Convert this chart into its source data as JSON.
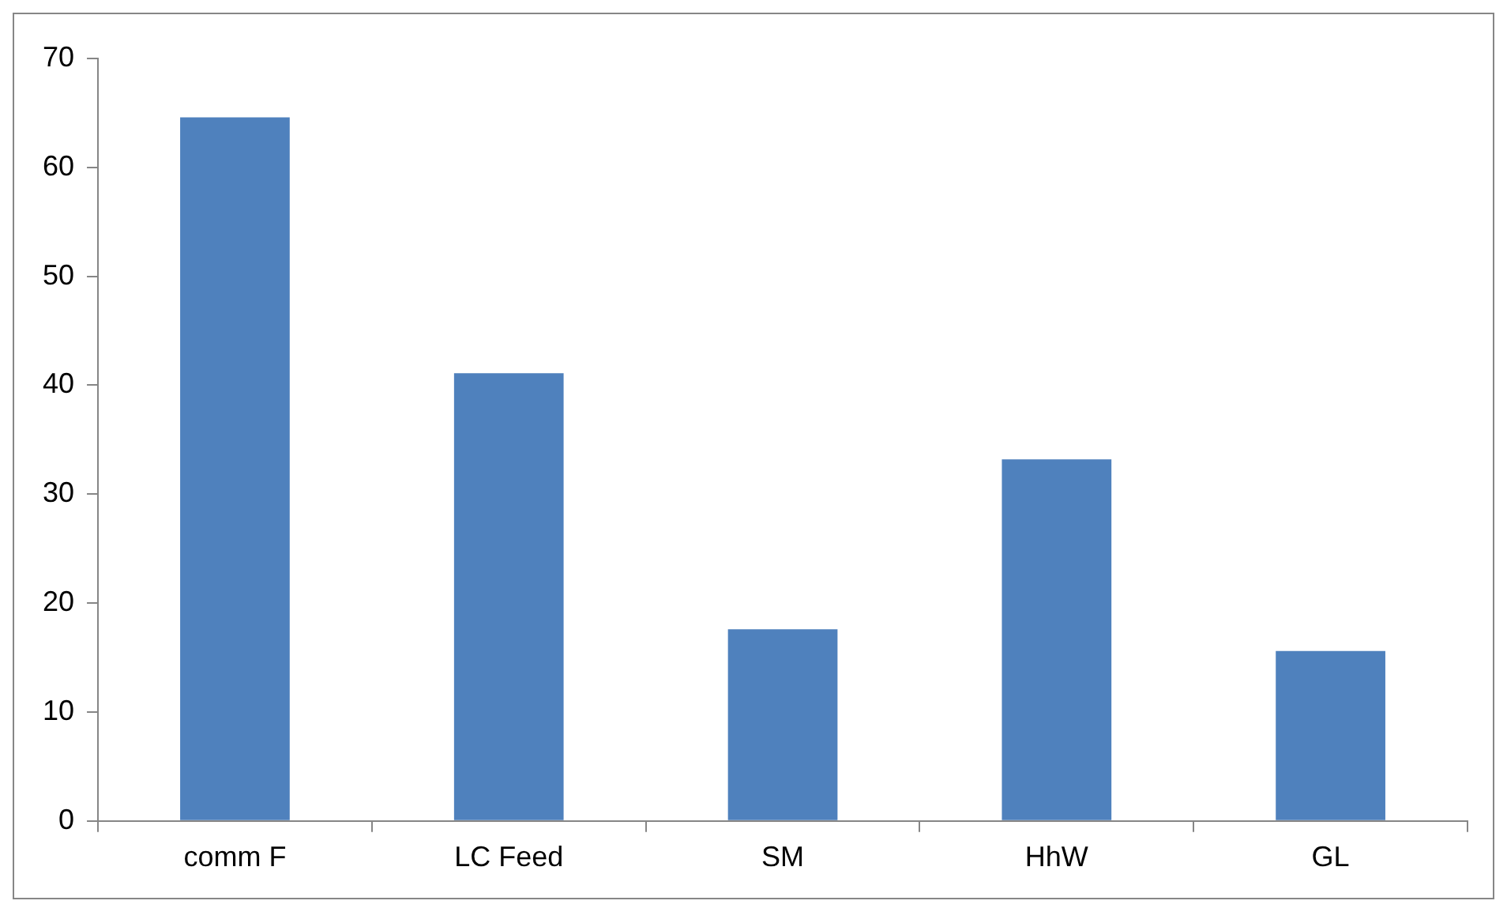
{
  "chart_data": {
    "type": "bar",
    "categories": [
      "comm F",
      "LC Feed",
      "SM",
      "HhW",
      "GL"
    ],
    "values": [
      64.6,
      41.1,
      17.6,
      33.2,
      15.6
    ],
    "color": "#4f81bd",
    "ylim": [
      0,
      70
    ],
    "yticks": [
      0,
      10,
      20,
      30,
      40,
      50,
      60,
      70
    ],
    "grid": false,
    "legend": false
  }
}
